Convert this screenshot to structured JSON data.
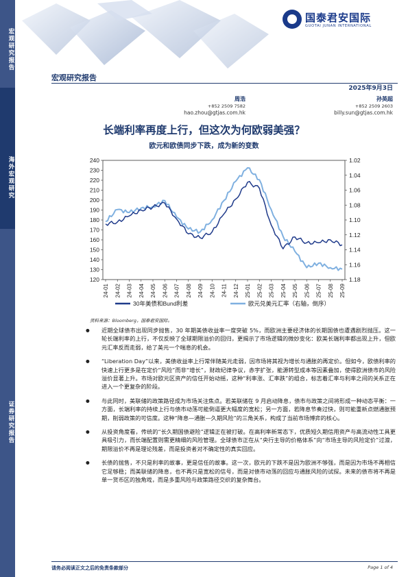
{
  "sidebar": {
    "segments": [
      "宏观研究报告",
      "海外宏观研究",
      "证券研究报告"
    ]
  },
  "brand": {
    "name_cn": "国泰君安国际",
    "name_en": "GUOTAI JUNAN INTERNATIONAL"
  },
  "header": {
    "report_type": "宏观研究报告",
    "date": "2025年9月3日"
  },
  "authors": [
    {
      "name": "周浩",
      "phone": "+852 2509 7582",
      "email": "hao.zhou@gtjas.com.hk"
    },
    {
      "name": "孙英超",
      "phone": "+852 2509 2603",
      "email": "billy.sun@gtjas.com.hk"
    }
  ],
  "title": "长端利率再度上行，但这次为何欧弱美强？",
  "subtitle": "欧元和欧债同步下跌，成为新的变数",
  "chart_data": {
    "type": "line",
    "x": [
      "24-01",
      "24-02",
      "24-03",
      "24-04",
      "24-05",
      "24-06",
      "24-07",
      "24-08",
      "24-09",
      "24-10",
      "24-11",
      "24-12",
      "25-01",
      "25-02",
      "25-03",
      "25-04",
      "25-05",
      "25-06",
      "25-07",
      "25-08",
      "25-09"
    ],
    "y_left_ticks": [
      "240",
      "230",
      "220",
      "210",
      "200",
      "190",
      "180",
      "170",
      "160",
      "150",
      "140",
      "130",
      "120"
    ],
    "y_right_ticks": [
      "1.02",
      "1.04",
      "1.06",
      "1.08",
      "1.10",
      "1.12",
      "1.14",
      "1.16",
      "1.18"
    ],
    "ylim_left": [
      120,
      240
    ],
    "ylim_right": [
      1.18,
      1.02
    ],
    "right_axis_inverted": true,
    "series": [
      {
        "name": "30年美债和Bund利差",
        "axis": "left",
        "color": "#1f3a8a",
        "values": [
          176,
          178,
          184,
          190,
          193,
          197,
          181,
          166,
          162,
          168,
          186,
          201,
          218,
          212,
          175,
          151,
          163,
          157,
          157,
          160,
          155
        ]
      },
      {
        "name": "欧元兑美元汇率（右轴，倒序）",
        "axis": "right",
        "color": "#7fb0e0",
        "values": [
          1.102,
          1.086,
          1.09,
          1.084,
          1.082,
          1.074,
          1.096,
          1.112,
          1.116,
          1.1,
          1.074,
          1.048,
          1.03,
          1.046,
          1.086,
          1.122,
          1.142,
          1.164,
          1.158,
          1.164,
          1.166
        ]
      }
    ],
    "legend_position": "bottom",
    "grid": false
  },
  "source": "资料来源：Bloomberg，国泰君安国际。",
  "bullets": [
    "近期全球债市出现同步抛售，30 年期美债收益率一度突破 5%，而欧洲主要经济体的长期国债也遭遇剧烈抛压。这一轮长端利率的上行，不仅反映了全球期限溢价的回归，更揭示了市场逻辑的微妙变化：欧美长端利率都出现上升，但欧元汇率反而走弱，给了美元一个喘息的机会。",
    "“Liberation Day”以来，美债收益率上行常伴随美元走弱，因市场将其视为增长与通胀的再定价。但如今，欧债利率的快速上行更多是在定价“风险”而非“增长”，财政纪律争议，赤字扩张，能源转型成本等因素叠加，使得欧洲债市的风险溢价显著上升。市场对欧元区资产的信任开始动摇，这种“利率涨、汇率跌”的组合，标志着汇率与利率之间的关系正在进入一个更复杂的阶段。",
    "与此同时，美联储的政策路径成为市场关注焦点。若美联储在 9 月启动降息，债市与政策之间将形成一种动态平衡：一方面，长端利率的持续上行与债市动荡可能倒逼更大幅度的宽松；另一方面，若降息节奏过快，则可能重新点燃通胀预期，削弱政策的可信度。这种“降息—通胀—久期风险”的三角关系，构成了当前市场博弈的核心。",
    "从投资角度看，传统的“长久期国债避险”逻辑正在被打破。在高利率新常态下，优质短久期信用资产与高流动性工具更具吸引力，而长端配置则需更精细的风险管理。全球债市正在从“央行主导的价格体系”向“市场主导的风险定价”过渡，期限溢价不再是理论残差，而是投资者对不确定性的真实回应。",
    "长债的抛售，不只是利率的故事，更是信任的故事。这一次，欧元的下跌不是因为欧洲不够强，而是因为市场不再相信它足够稳；而美联储的降息，也不再只是宽松的信号，而是对债市动荡的回应与通胀风险的试探。未来的债市将不再是单一货币区的独角戏，而是多重风险与政策路径交织的复杂舞台。"
  ],
  "footer": {
    "disclaimer": "请务必阅读正文之后的免责条款部分",
    "page": "Page 1 of 4"
  }
}
